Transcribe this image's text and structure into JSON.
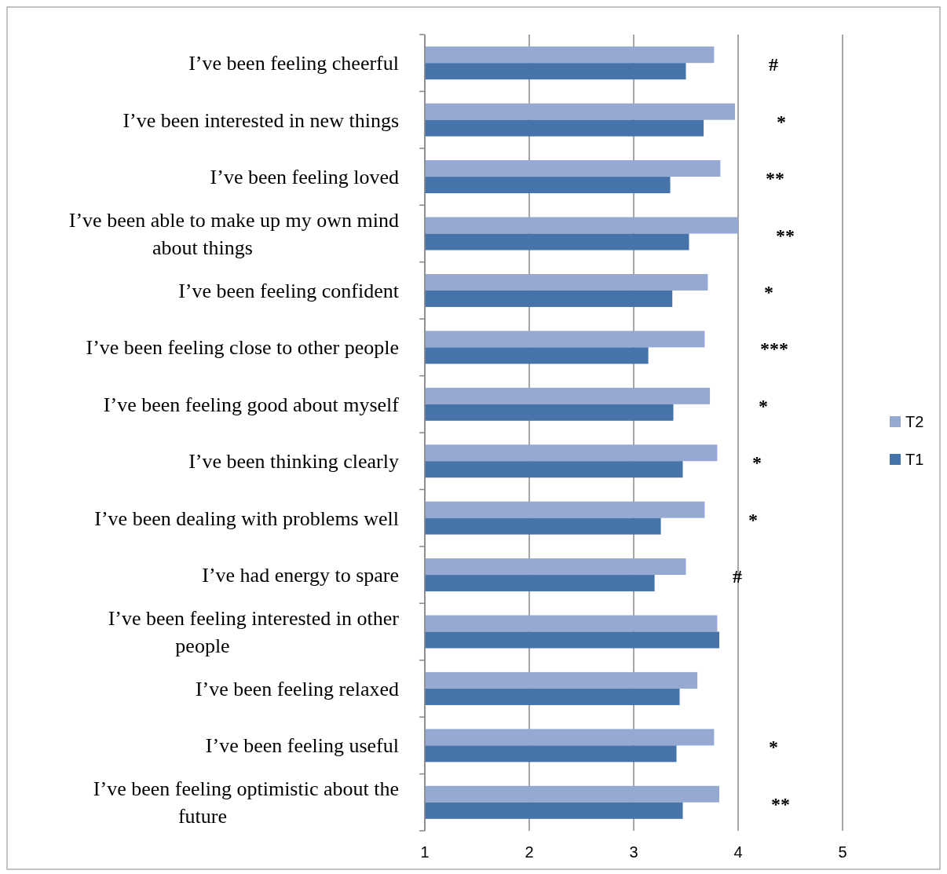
{
  "chart_data": {
    "type": "bar",
    "orientation": "horizontal",
    "categories": [
      "I’ve been feeling cheerful",
      "I’ve been interested in new things",
      "I’ve been feeling loved",
      "I’ve been able to make up my own mind about things",
      "I’ve been feeling confident",
      "I’ve been feeling close to other people",
      "I’ve been feeling good about myself",
      "I’ve been thinking clearly",
      "I’ve been dealing with problems well",
      "I’ve had energy to spare",
      "I’ve been feeling interested in other people",
      "I’ve been feeling relaxed",
      "I’ve been feeling useful",
      "I’ve been feeling optimistic about the future"
    ],
    "series": [
      {
        "name": "T2",
        "color": "#95a9d2",
        "values": [
          3.77,
          3.97,
          3.83,
          4.0,
          3.71,
          3.68,
          3.73,
          3.8,
          3.68,
          3.5,
          3.8,
          3.61,
          3.77,
          3.82
        ]
      },
      {
        "name": "T1",
        "color": "#4674aa",
        "values": [
          3.5,
          3.67,
          3.35,
          3.53,
          3.37,
          3.14,
          3.38,
          3.47,
          3.26,
          3.2,
          3.82,
          3.44,
          3.41,
          3.47
        ]
      }
    ],
    "xlim": [
      1,
      5
    ],
    "xticks": [
      1,
      2,
      3,
      4,
      5
    ],
    "grid": "x",
    "legend": "right",
    "annotations": [
      "#",
      "*",
      "**",
      "**",
      "*",
      "***",
      "*",
      "*",
      "*",
      "#",
      "*",
      "**"
    ]
  }
}
